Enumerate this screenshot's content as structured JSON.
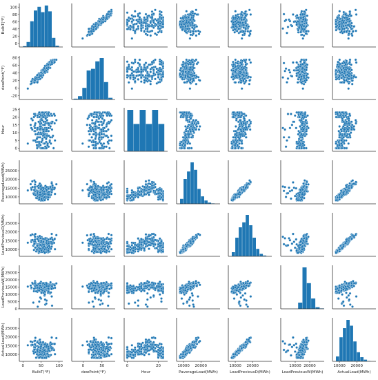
{
  "chart_data": {
    "type": "scatter",
    "title": "",
    "variables": [
      "BulbT(°F)",
      "dewPoint(°F)",
      "Hour",
      "PaverageLoad(MWh)",
      "LoadPreviousD(MWh)",
      "LoadPreviousW(MWh)",
      "ActualLoad(MWh)"
    ],
    "ranges": [
      [
        -10,
        110
      ],
      [
        -30,
        85
      ],
      [
        -2,
        26
      ],
      [
        6000,
        31000
      ],
      [
        6000,
        31000
      ],
      [
        0,
        30000
      ],
      [
        6000,
        31000
      ]
    ],
    "tick_labels": {
      "y": [
        [
          "0",
          "20",
          "40",
          "60",
          "80",
          "100"
        ],
        [
          "-20",
          "0",
          "20",
          "40",
          "60",
          "80"
        ],
        [
          "0",
          "5",
          "10",
          "15",
          "20",
          "25"
        ],
        [
          "10000",
          "15000",
          "20000",
          "25000"
        ],
        [
          "10000",
          "15000",
          "20000",
          "25000"
        ],
        [
          "0",
          "5000",
          "10000",
          "15000",
          "20000",
          "25000"
        ],
        [
          "10000",
          "15000",
          "20000",
          "25000"
        ]
      ],
      "x": [
        [
          "0",
          "50",
          "100"
        ],
        [
          "0",
          "50"
        ],
        [
          "0",
          "20"
        ],
        [
          "10000",
          "20000"
        ],
        [
          "10000",
          "20000"
        ],
        [
          "10000",
          "20000"
        ],
        [
          "10000",
          "20000"
        ]
      ]
    },
    "diagonal": "histogram",
    "off_diagonal": "scatter",
    "marker_color": "#1f77b4",
    "marker_edge": "#ffffff",
    "histograms": [
      {
        "bins": [
          0,
          10,
          20,
          30,
          40,
          50,
          60,
          70,
          80,
          90,
          100
        ],
        "counts": [
          2,
          12,
          62,
          88,
          97,
          84,
          100,
          86,
          22,
          3
        ]
      },
      {
        "bins": [
          -25,
          -13.5,
          -2,
          9.5,
          21,
          32.5,
          44,
          55.5,
          67,
          78.5
        ],
        "counts": [
          2,
          8,
          28,
          70,
          74,
          92,
          100,
          42,
          4
        ]
      },
      {
        "bins": [
          0,
          4,
          8,
          12,
          16,
          20,
          24
        ],
        "counts": [
          100,
          66,
          100,
          66,
          100,
          66
        ]
      },
      {
        "bins": [
          8000,
          10000,
          12000,
          14000,
          16000,
          18000,
          20000,
          22000,
          24000,
          26000,
          28000
        ],
        "counts": [
          12,
          60,
          78,
          100,
          82,
          36,
          18,
          8,
          3,
          1
        ]
      },
      {
        "bins": [
          8000,
          10000,
          12000,
          14000,
          16000,
          18000,
          20000,
          22000,
          24000,
          26000,
          28000
        ],
        "counts": [
          10,
          45,
          70,
          82,
          100,
          75,
          45,
          18,
          6,
          2
        ]
      },
      {
        "bins": [
          0,
          3000,
          6000,
          9000,
          12000,
          15000,
          18000,
          21000,
          24000,
          27000,
          30000
        ],
        "counts": [
          0,
          0,
          0,
          0,
          15,
          100,
          62,
          25,
          4,
          1
        ]
      },
      {
        "bins": [
          8000,
          10000,
          12000,
          14000,
          16000,
          18000,
          20000,
          22000,
          24000,
          26000,
          28000
        ],
        "counts": [
          12,
          58,
          80,
          100,
          86,
          48,
          22,
          10,
          4,
          1
        ]
      }
    ]
  }
}
